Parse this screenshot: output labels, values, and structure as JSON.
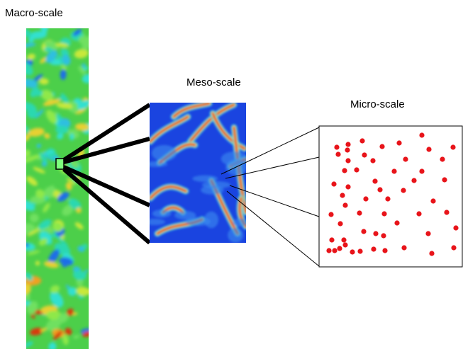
{
  "labels": {
    "macro": "Macro-scale",
    "meso": "Meso-scale",
    "micro": "Micro-scale"
  }
}
